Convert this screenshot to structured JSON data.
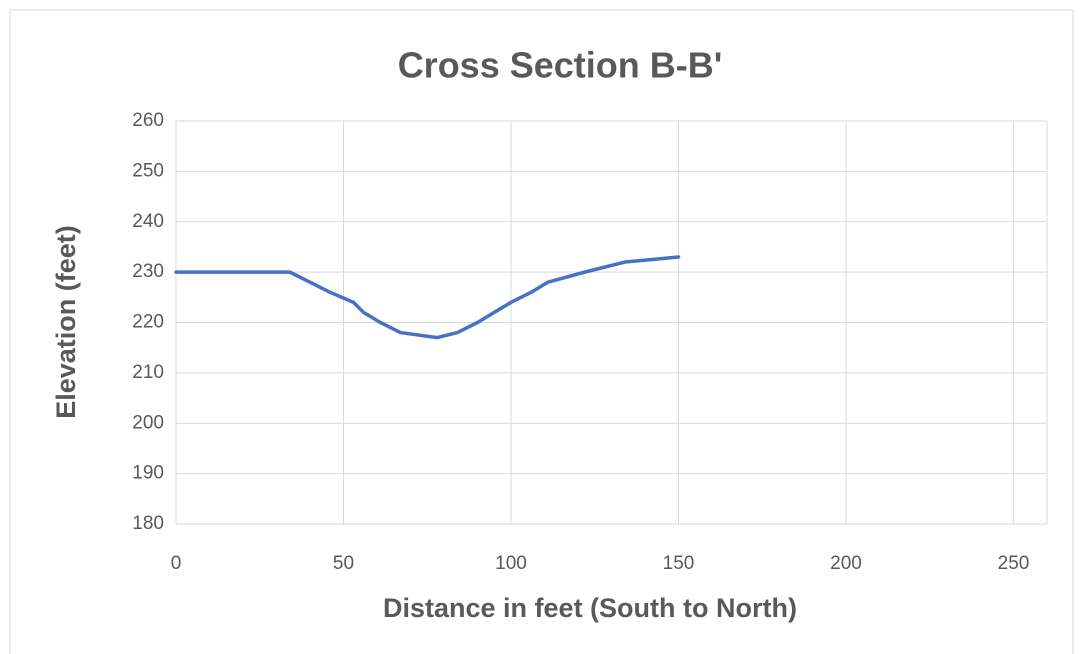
{
  "chart_data": {
    "type": "line",
    "title": "Cross Section B-B'",
    "xlabel": "Distance in feet (South to North)",
    "ylabel": "Elevation (feet)",
    "x": [
      0,
      34,
      40,
      46,
      53,
      56,
      61,
      67,
      78,
      84,
      90,
      95,
      100,
      106,
      111,
      122,
      134,
      150
    ],
    "series": [
      {
        "name": "Elevation",
        "color": "#4472c4",
        "values": [
          230,
          230,
          228,
          226,
          224,
          222,
          220,
          218,
          217,
          218,
          220,
          222,
          224,
          226,
          228,
          230,
          232,
          233
        ]
      }
    ],
    "xlim": [
      0,
      260
    ],
    "xticks": [
      0,
      50,
      100,
      150,
      200,
      250
    ],
    "ylim": [
      180,
      260
    ],
    "yticks": [
      180,
      190,
      200,
      210,
      220,
      230,
      240,
      250,
      260
    ],
    "grid": true
  }
}
